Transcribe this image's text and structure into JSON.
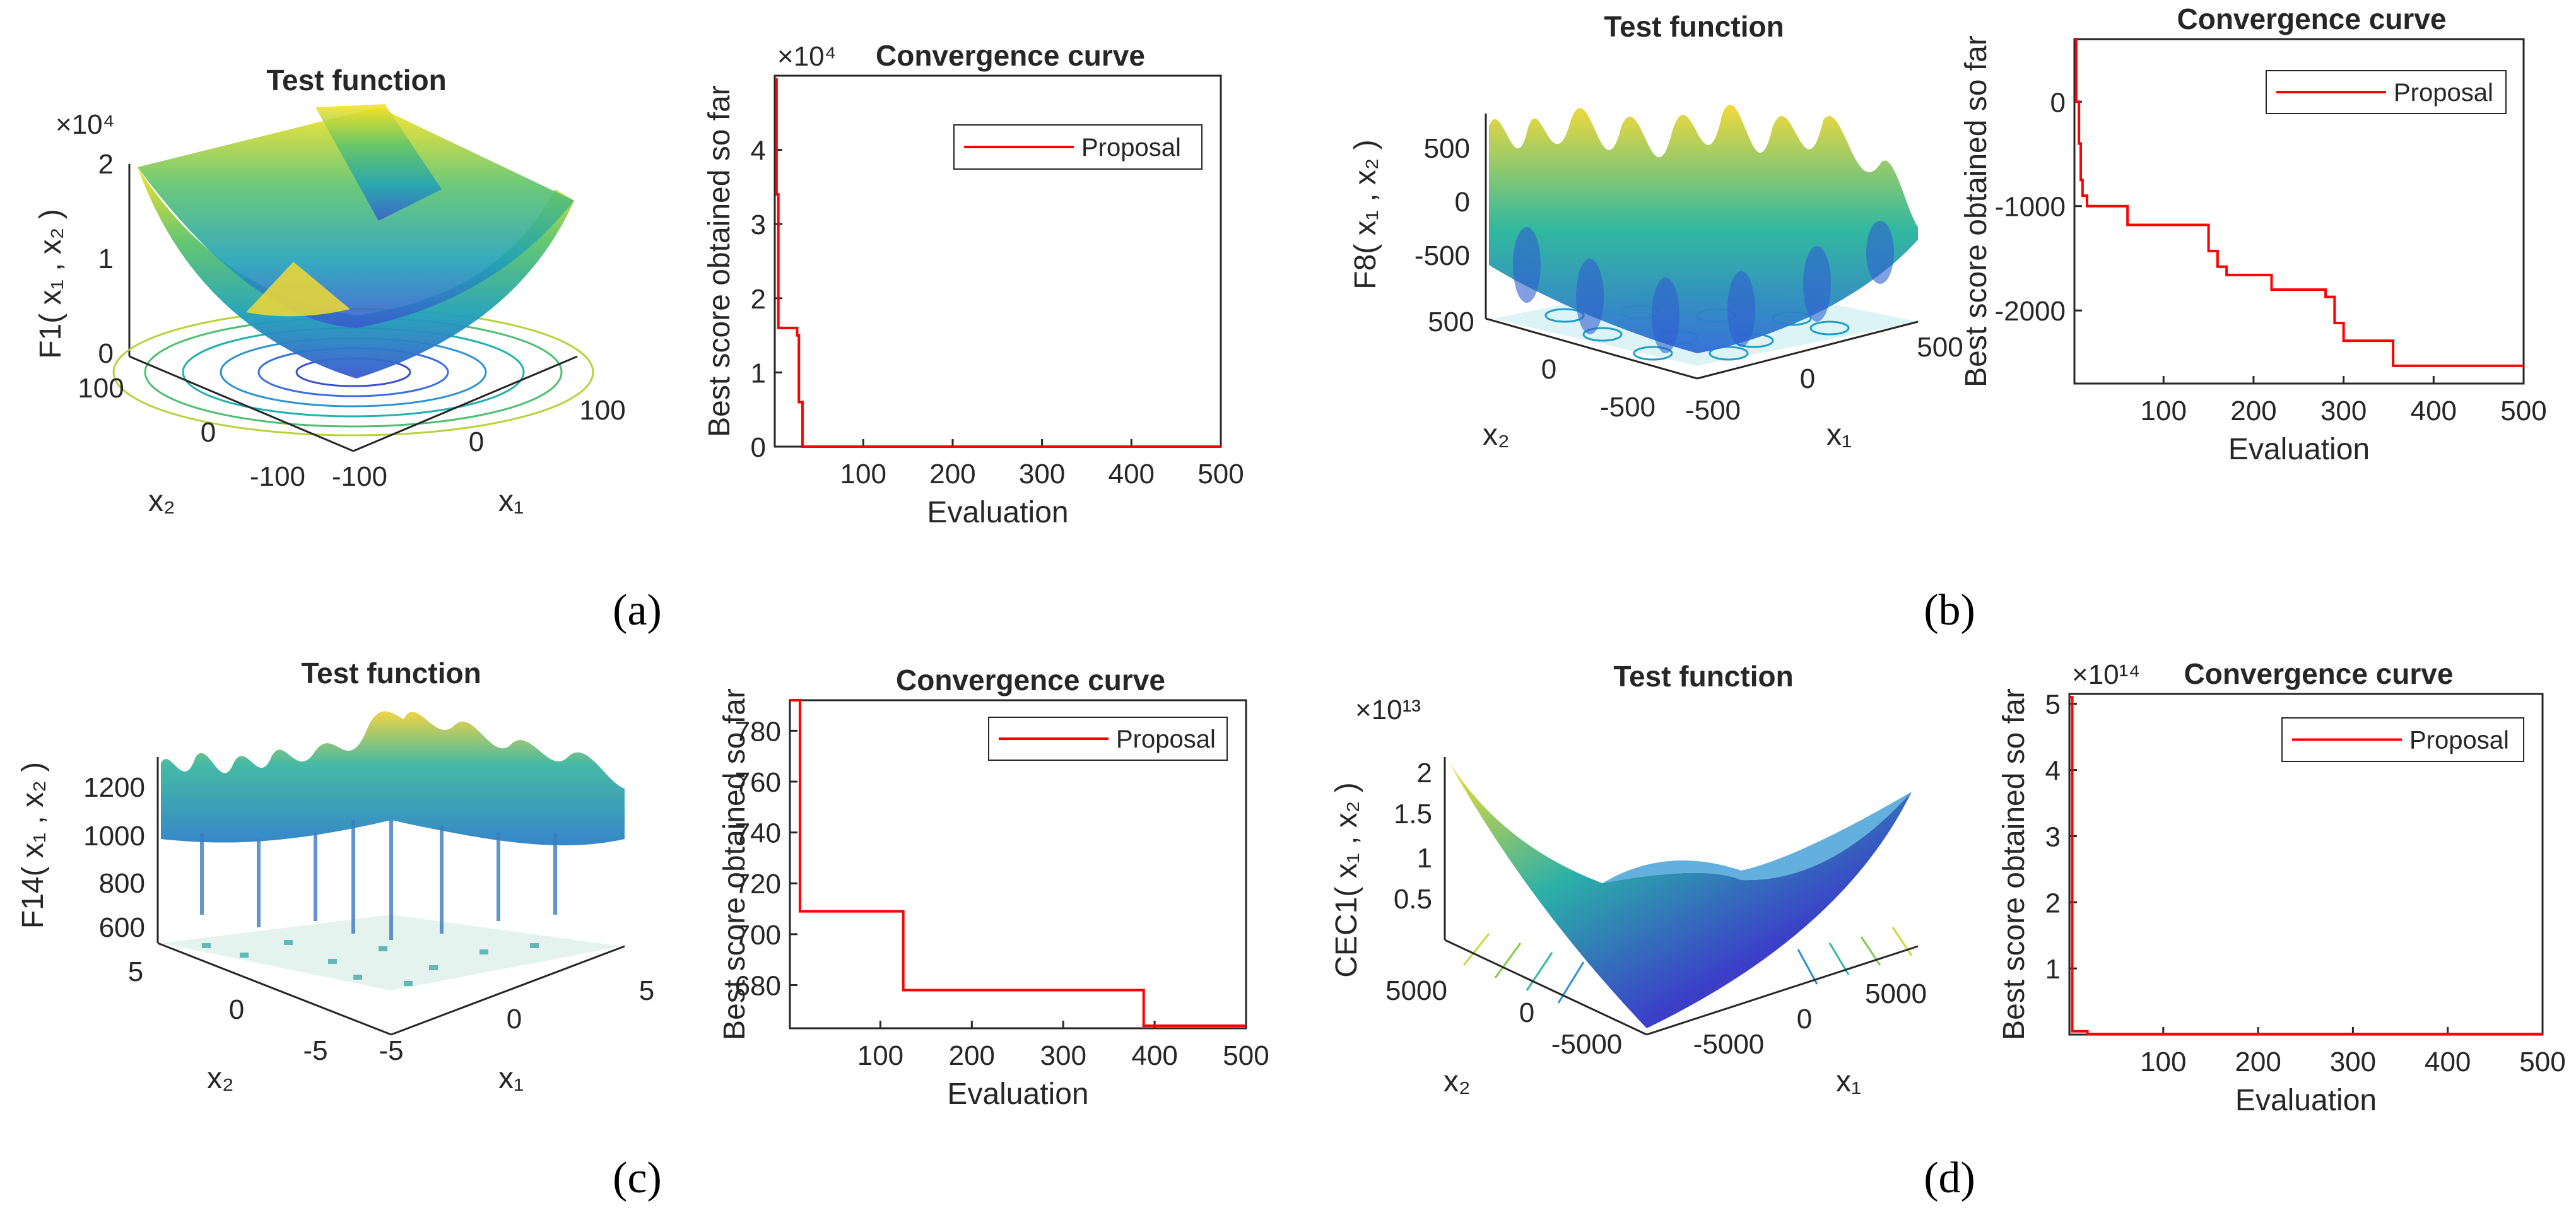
{
  "chart_data": [
    {
      "id": "a",
      "type": "surface3d",
      "title": "Test function",
      "zlabel": "F1( x₁ , x₂ )",
      "xlabel": "x₁",
      "ylabel": "x₂",
      "zexp": "×10⁴",
      "zticks": [
        "0",
        "1",
        "2"
      ],
      "xticks": [
        "-100",
        "0",
        "100"
      ],
      "yticks": [
        "-100",
        "0",
        "100"
      ]
    },
    {
      "id": "a",
      "type": "line",
      "title": "Convergence curve",
      "xlabel": "Evaluation",
      "ylabel": "Best score obtained so far",
      "yexp": "×10⁴",
      "xlim": [
        1,
        500
      ],
      "ylim": [
        0,
        5
      ],
      "xticks": [
        100,
        200,
        300,
        400,
        500
      ],
      "yticks": [
        0,
        1,
        2,
        3,
        4
      ],
      "legend": "Proposal",
      "series": [
        {
          "name": "Proposal",
          "x": [
            1,
            3,
            3,
            5,
            5,
            10,
            10,
            26,
            26,
            28,
            28,
            32,
            32,
            500
          ],
          "y": [
            4.95,
            4.95,
            3.4,
            3.4,
            1.6,
            1.6,
            1.6,
            1.6,
            1.5,
            1.5,
            0.6,
            0.6,
            0,
            0
          ]
        }
      ]
    },
    {
      "id": "b",
      "type": "surface3d",
      "title": "Test function",
      "zlabel": "F8( x₁ , x₂ )",
      "xlabel": "x₁",
      "ylabel": "x₂",
      "zexp": "",
      "zticks": [
        "-500",
        "0",
        "500"
      ],
      "xticks": [
        "-500",
        "0",
        "500"
      ],
      "yticks": [
        "-500",
        "0",
        "500"
      ]
    },
    {
      "id": "b",
      "type": "line",
      "title": "Convergence curve",
      "xlabel": "Evaluation",
      "ylabel": "Best score obtained so far",
      "yexp": "",
      "xlim": [
        1,
        500
      ],
      "ylim": [
        -2700,
        600
      ],
      "xticks": [
        100,
        200,
        300,
        400,
        500
      ],
      "yticks": [
        -2000,
        -1000,
        0
      ],
      "legend": "Proposal",
      "series": [
        {
          "name": "Proposal",
          "x": [
            1,
            3,
            3,
            6,
            6,
            8,
            8,
            10,
            10,
            15,
            15,
            60,
            60,
            150,
            150,
            160,
            160,
            170,
            170,
            220,
            220,
            280,
            280,
            290,
            290,
            300,
            300,
            355,
            355,
            500
          ],
          "y": [
            600,
            600,
            0,
            0,
            -400,
            -400,
            -750,
            -750,
            -900,
            -900,
            -1000,
            -1000,
            -1180,
            -1180,
            -1430,
            -1430,
            -1580,
            -1580,
            -1660,
            -1660,
            -1800,
            -1800,
            -1870,
            -1870,
            -2120,
            -2120,
            -2290,
            -2290,
            -2530,
            -2530
          ]
        }
      ]
    },
    {
      "id": "c",
      "type": "surface3d",
      "title": "Test function",
      "zlabel": "F14( x₁ , x₂ )",
      "xlabel": "x₁",
      "ylabel": "x₂",
      "zexp": "",
      "zticks": [
        "600",
        "800",
        "1000",
        "1200"
      ],
      "xticks": [
        "-5",
        "0",
        "5"
      ],
      "yticks": [
        "-5",
        "0",
        "5"
      ]
    },
    {
      "id": "c",
      "type": "line",
      "title": "Convergence curve",
      "xlabel": "Evaluation",
      "ylabel": "Best score obtained so far",
      "yexp": "",
      "xlim": [
        1,
        500
      ],
      "ylim": [
        663,
        792
      ],
      "xticks": [
        100,
        200,
        300,
        400,
        500
      ],
      "yticks": [
        680,
        700,
        720,
        740,
        760,
        780
      ],
      "legend": "Proposal",
      "series": [
        {
          "name": "Proposal",
          "x": [
            1,
            12,
            12,
            125,
            125,
            388,
            388,
            500
          ],
          "y": [
            792,
            792,
            709,
            709,
            678,
            678,
            664,
            664
          ]
        }
      ]
    },
    {
      "id": "d",
      "type": "surface3d",
      "title": "Test function",
      "zlabel": "CEC1( x₁ , x₂ )",
      "xlabel": "x₁",
      "ylabel": "x₂",
      "zexp": "×10¹³",
      "zticks": [
        "0.5",
        "1",
        "1.5",
        "2"
      ],
      "xticks": [
        "-5000",
        "0",
        "5000"
      ],
      "yticks": [
        "-5000",
        "0",
        "5000"
      ]
    },
    {
      "id": "d",
      "type": "line",
      "title": "Convergence curve",
      "xlabel": "Evaluation",
      "ylabel": "Best score obtained so far",
      "yexp": "×10¹⁴",
      "xlim": [
        1,
        500
      ],
      "ylim": [
        0,
        5.15
      ],
      "xticks": [
        100,
        200,
        300,
        400,
        500
      ],
      "yticks": [
        1,
        2,
        3,
        4,
        5
      ],
      "legend": "Proposal",
      "series": [
        {
          "name": "Proposal",
          "x": [
            1,
            4,
            4,
            20,
            20,
            500
          ],
          "y": [
            5.1,
            5.1,
            0.05,
            0.05,
            0.01,
            0.01
          ]
        }
      ]
    }
  ],
  "subfigures": [
    "(a)",
    "(b)",
    "(c)",
    "(d)"
  ]
}
